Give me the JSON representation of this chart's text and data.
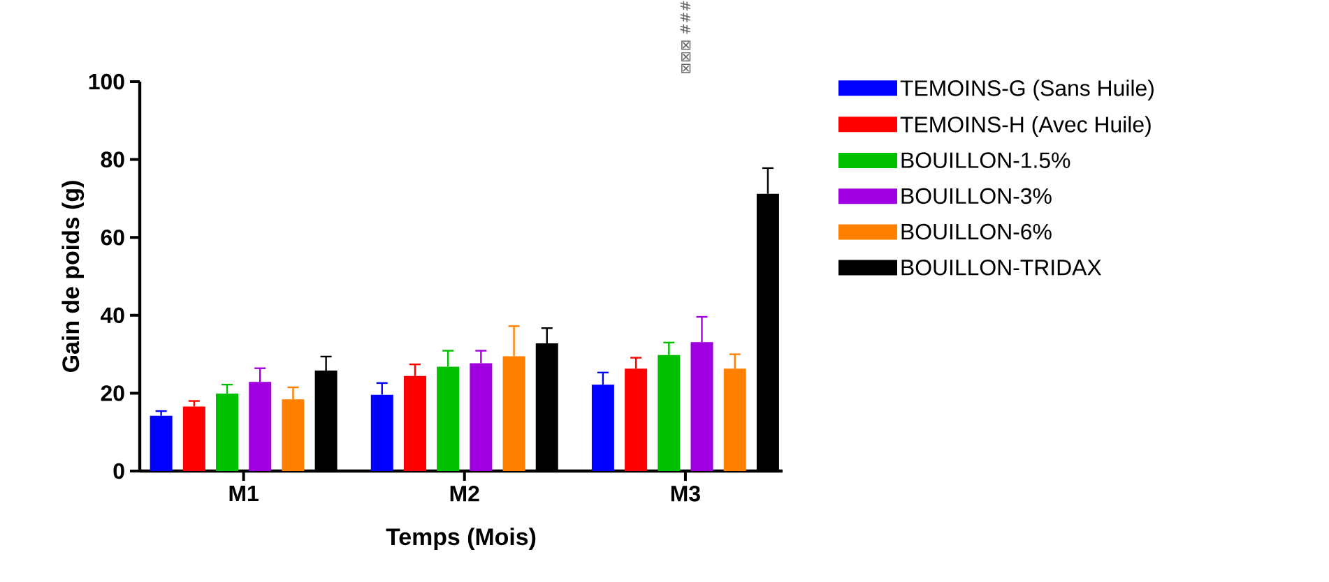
{
  "chart_data": {
    "type": "bar",
    "xlabel": "Temps (Mois)",
    "ylabel": "Gain de poids (g)",
    "categories": [
      "M1",
      "M2",
      "M3"
    ],
    "ylim": [
      0,
      100
    ],
    "yticks": [
      0,
      20,
      40,
      60,
      80,
      100
    ],
    "legend": "right",
    "grid": false,
    "series": [
      {
        "name": "TEMOINS-G (Sans Huile)",
        "color": "#0000ff",
        "values": [
          14.2,
          19.6,
          22.2
        ],
        "errors": [
          1.2,
          3.0,
          3.1
        ]
      },
      {
        "name": "TEMOINS-H (Avec Huile)",
        "color": "#ff0000",
        "values": [
          16.6,
          24.4,
          26.3
        ],
        "errors": [
          1.4,
          3.0,
          2.8
        ]
      },
      {
        "name": "BOUILLON-1.5%",
        "color": "#00c000",
        "values": [
          19.9,
          26.8,
          29.8
        ],
        "errors": [
          2.3,
          4.1,
          3.2
        ]
      },
      {
        "name": "BOUILLON-3%",
        "color": "#a000e0",
        "values": [
          22.9,
          27.7,
          33.1
        ],
        "errors": [
          3.5,
          3.2,
          6.5
        ]
      },
      {
        "name": "BOUILLON-6%",
        "color": "#ff8000",
        "values": [
          18.4,
          29.5,
          26.3
        ],
        "errors": [
          3.1,
          7.7,
          3.7
        ]
      },
      {
        "name": "BOUILLON-TRIDAX",
        "color": "#000000",
        "values": [
          25.8,
          32.8,
          71.2
        ],
        "errors": [
          3.6,
          3.9,
          6.6
        ]
      }
    ],
    "annotations": [
      "⊠⊠⊠ ###"
    ]
  }
}
